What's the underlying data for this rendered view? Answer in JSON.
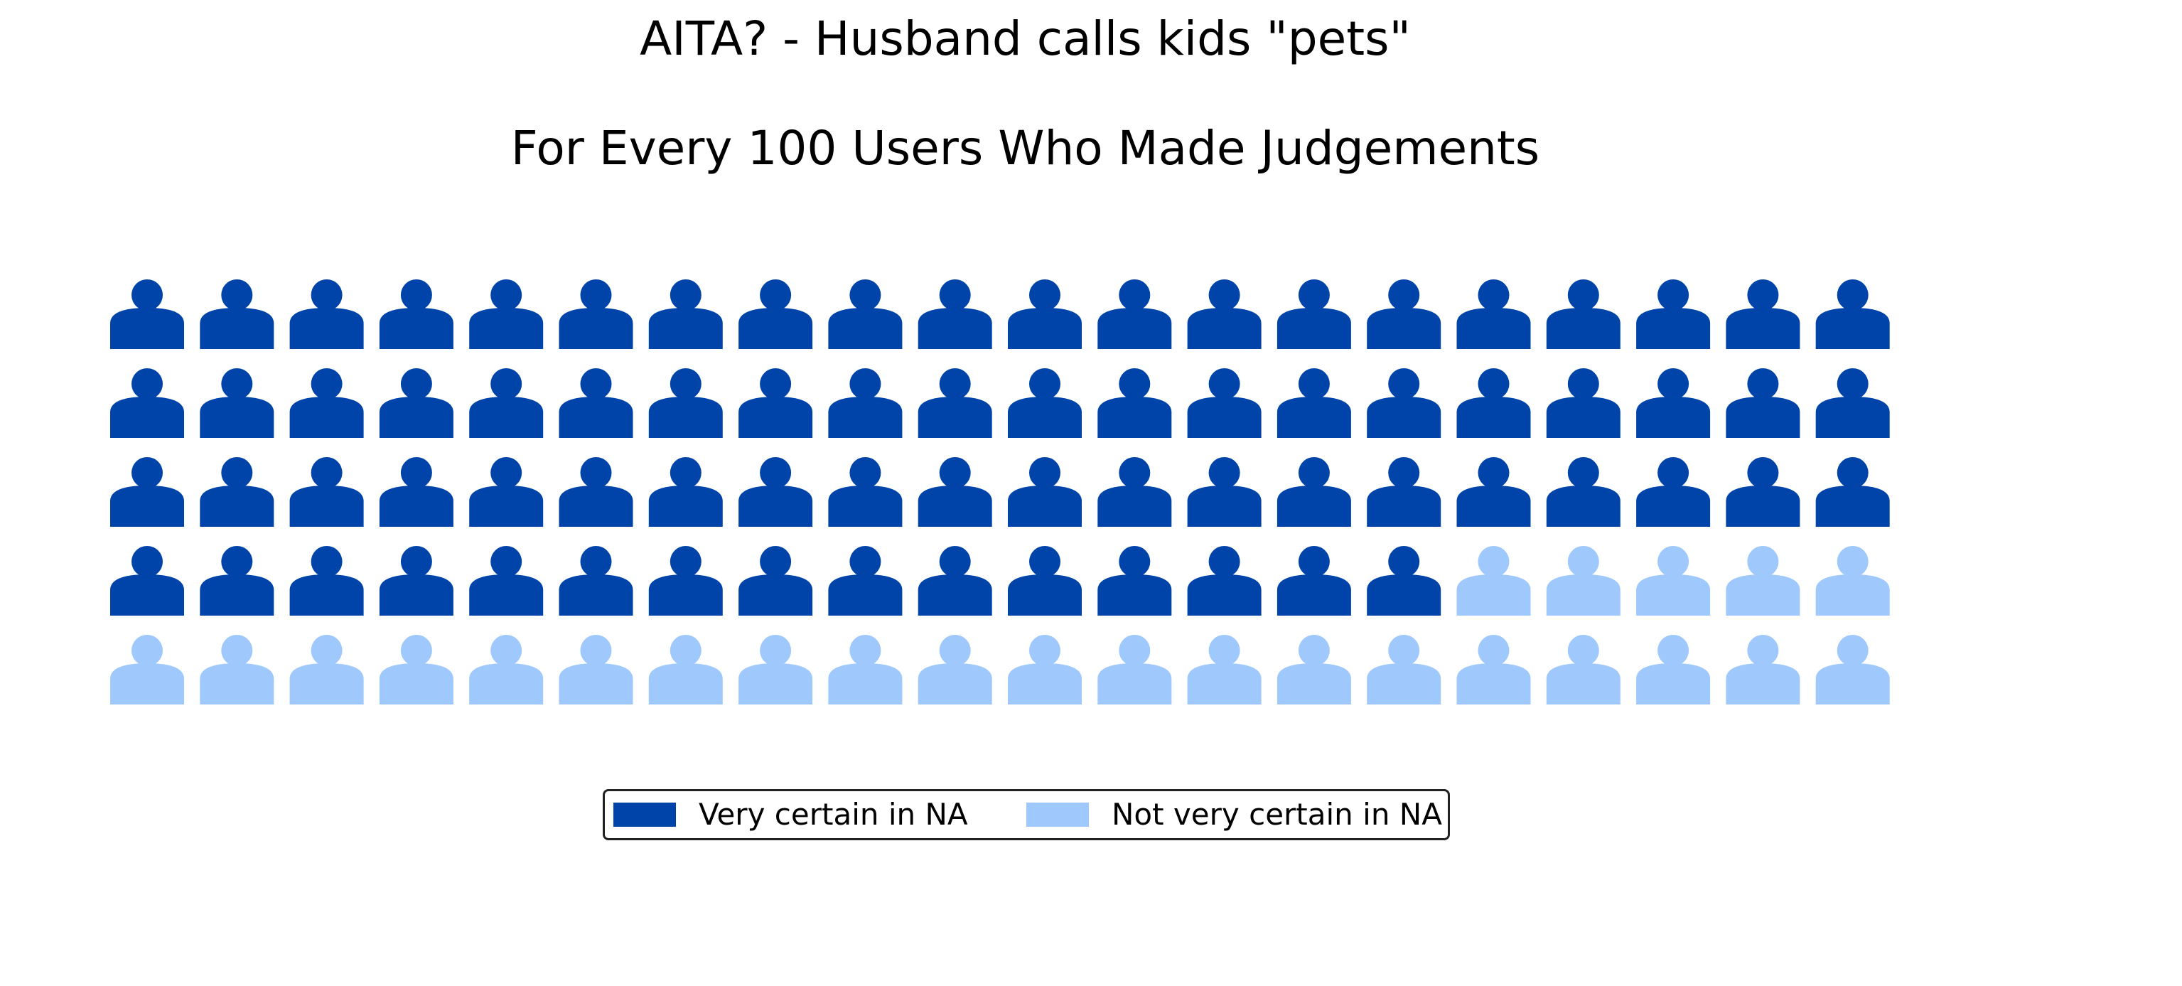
{
  "chart_data": {
    "type": "waffle",
    "title": "AITA? - Husband calls kids \"pets\"",
    "subtitle": "For Every 100 Users Who Made Judgements",
    "rows": 5,
    "columns": 20,
    "total": 100,
    "icon": "person-icon",
    "series": [
      {
        "name": "Very certain in NA",
        "value": 75,
        "color": "#0044aa"
      },
      {
        "name": "Not very certain in NA",
        "value": 25,
        "color": "#9fc8fc"
      }
    ],
    "legend": "bottom-center"
  }
}
